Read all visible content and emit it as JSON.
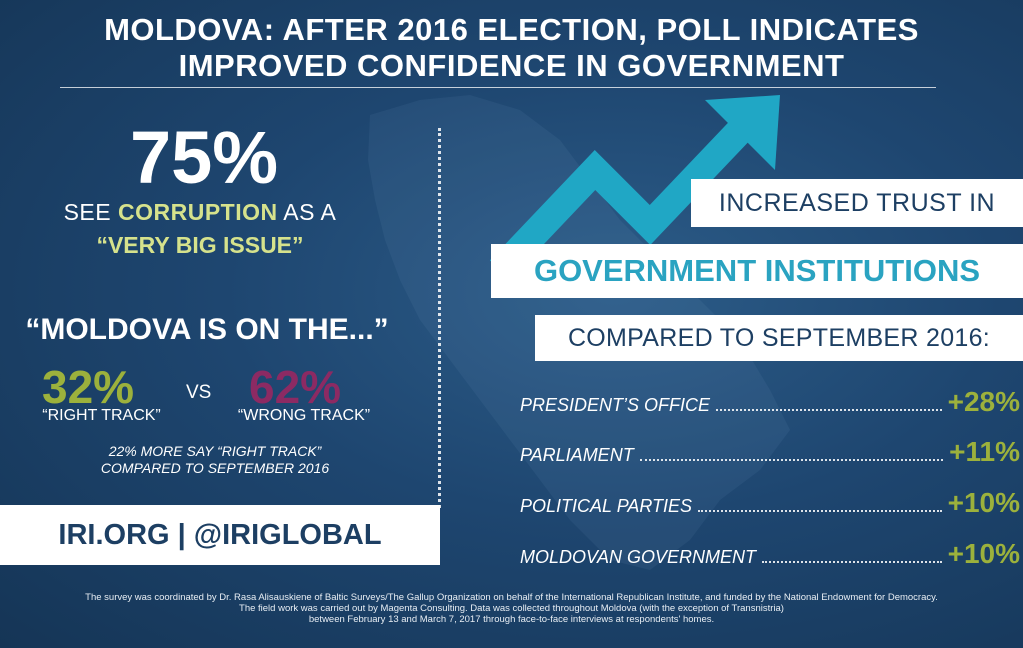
{
  "title": {
    "line1": "MOLDOVA: AFTER 2016 ELECTION, POLL INDICATES",
    "line2": "IMPROVED CONFIDENCE IN GOVERNMENT"
  },
  "corruption": {
    "percent": "75%",
    "see": "SEE",
    "keyword": "CORRUPTION",
    "as_a": "AS A",
    "issue": "“VERY BIG ISSUE”"
  },
  "track": {
    "heading": "“MOLDOVA IS ON THE...”",
    "right_pct": "32%",
    "right_label": "“RIGHT TRACK”",
    "vs": "VS",
    "wrong_pct": "62%",
    "wrong_label": "“WRONG TRACK”",
    "note_line1": "22% MORE SAY “RIGHT TRACK”",
    "note_line2": "COMPARED TO SEPTEMBER 2016"
  },
  "branding": {
    "text": "IRI.ORG  |  @IRIGLOBAL"
  },
  "trust": {
    "line1": "INCREASED TRUST IN",
    "line2": "GOVERNMENT INSTITUTIONS",
    "line3": "COMPARED TO SEPTEMBER 2016:"
  },
  "institutions": [
    {
      "name": "PRESIDENT’S OFFICE",
      "change": "+28%"
    },
    {
      "name": "PARLIAMENT",
      "change": "+11%"
    },
    {
      "name": "POLITICAL PARTIES",
      "change": "+10%"
    },
    {
      "name": "MOLDOVAN GOVERNMENT",
      "change": "+10%"
    }
  ],
  "footer": {
    "line1": "The survey was coordinated by Dr. Rasa Alisauskiene of Baltic Surveys/The Gallup Organization on behalf of the International Republican Institute, and funded by the National Endowment for Democracy.",
    "line2": "The field work was carried out by Magenta Consulting. Data was collected throughout Moldova (with the exception of Transnistria)",
    "line3": "between February 13 and March 7, 2017 through face-to-face interviews at respondents' homes."
  },
  "colors": {
    "background": "#1e4670",
    "accent_green": "#9cb13c",
    "accent_light_green": "#d6e28c",
    "accent_purple": "#8c2a63",
    "accent_teal": "#2aa3c1",
    "navy_text": "#1d3f63"
  },
  "icons": {
    "trend": "trend-up-arrow-icon",
    "map": "moldova-map-silhouette"
  }
}
